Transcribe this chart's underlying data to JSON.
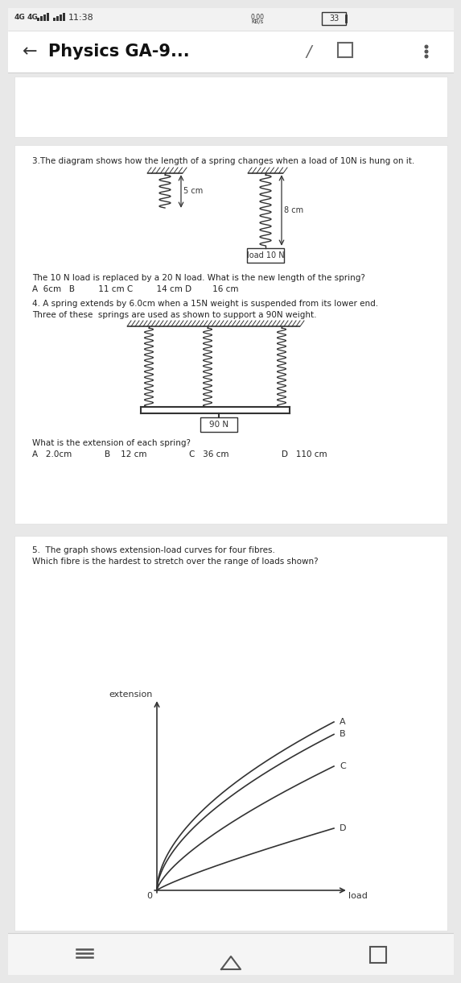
{
  "bg_color": "#e8e8e8",
  "card_color": "#ffffff",
  "title": "Physics GA-9...",
  "q3_text": "3.The diagram shows how the length of a spring changes when a load of 10N is hung on it.",
  "q3_spring1_label": "5 cm",
  "q3_spring2_label": "8 cm",
  "q3_load_label": "load 10 N",
  "q3_question": "The 10 N load is replaced by a 20 N load. What is the new length of the spring?",
  "q3_ans": "A  6cm   B         11 cm C         14 cm D        16 cm",
  "q4_text": "4. A spring extends by 6.0cm when a 15N weight is suspended from its lower end.",
  "q4_text2": "Three of these  springs are used as shown to support a 90N weight.",
  "q4_load_label": "90 N",
  "q4_question": "What is the extension of each spring?",
  "q4_ans": "A   2.0cm              B    12 cm              C   36 cm              D   110 cm",
  "q5_text": "5.  The graph shows extension-load curves for four fibres.",
  "q5_question": "Which fibre is the hardest to stretch over the range of loads shown?",
  "q5_xlabel": "load",
  "q5_ylabel": "extension",
  "text_color": "#222222",
  "dark_color": "#333333",
  "status_bg": "#f5f5f5",
  "header_bg": "#ffffff",
  "sep_color": "#d0d0d0"
}
